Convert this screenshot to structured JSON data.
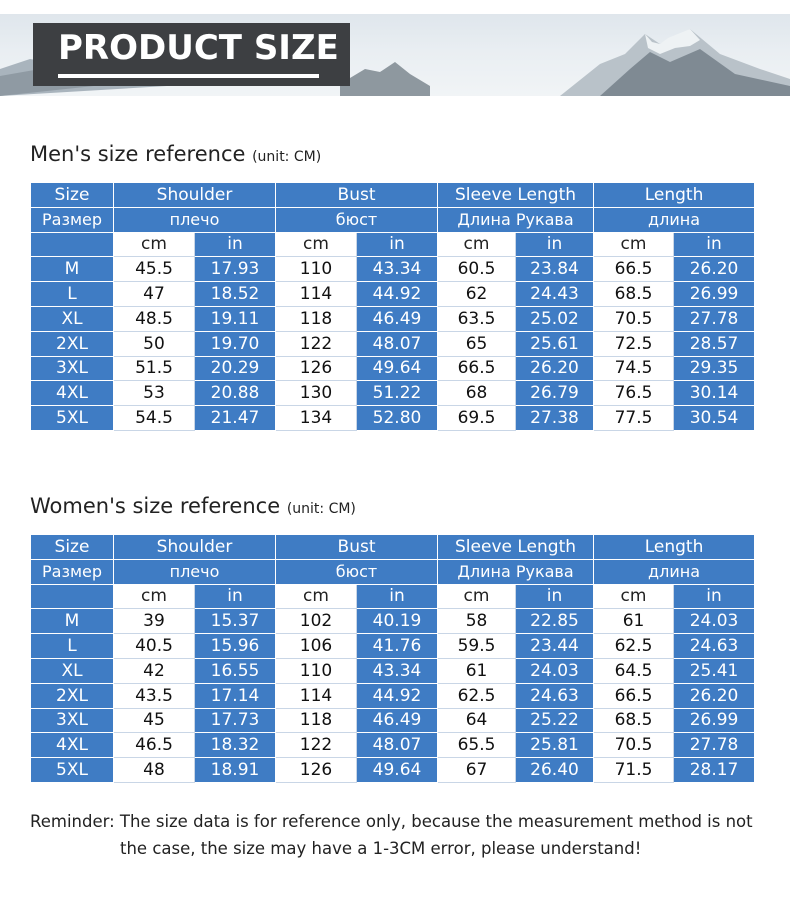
{
  "banner": {
    "title": "PRODUCT SIZE"
  },
  "columns": {
    "size": {
      "en": "Size",
      "ru": "Размер"
    },
    "groups": [
      {
        "en": "Shoulder",
        "ru": "плечо"
      },
      {
        "en": "Bust",
        "ru": "бюст"
      },
      {
        "en": "Sleeve Length",
        "ru": "Длина Рукава"
      },
      {
        "en": "Length",
        "ru": "длина"
      }
    ],
    "unit_cm": "cm",
    "unit_in": "in"
  },
  "men": {
    "heading": "Men's size reference",
    "unit": "(unit: CM)",
    "rows": [
      [
        "M",
        "45.5",
        "17.93",
        "110",
        "43.34",
        "60.5",
        "23.84",
        "66.5",
        "26.20"
      ],
      [
        "L",
        "47",
        "18.52",
        "114",
        "44.92",
        "62",
        "24.43",
        "68.5",
        "26.99"
      ],
      [
        "XL",
        "48.5",
        "19.11",
        "118",
        "46.49",
        "63.5",
        "25.02",
        "70.5",
        "27.78"
      ],
      [
        "2XL",
        "50",
        "19.70",
        "122",
        "48.07",
        "65",
        "25.61",
        "72.5",
        "28.57"
      ],
      [
        "3XL",
        "51.5",
        "20.29",
        "126",
        "49.64",
        "66.5",
        "26.20",
        "74.5",
        "29.35"
      ],
      [
        "4XL",
        "53",
        "20.88",
        "130",
        "51.22",
        "68",
        "26.79",
        "76.5",
        "30.14"
      ],
      [
        "5XL",
        "54.5",
        "21.47",
        "134",
        "52.80",
        "69.5",
        "27.38",
        "77.5",
        "30.54"
      ]
    ]
  },
  "women": {
    "heading": "Women's size reference",
    "unit": "(unit: CM)",
    "rows": [
      [
        "M",
        "39",
        "15.37",
        "102",
        "40.19",
        "58",
        "22.85",
        "61",
        "24.03"
      ],
      [
        "L",
        "40.5",
        "15.96",
        "106",
        "41.76",
        "59.5",
        "23.44",
        "62.5",
        "24.63"
      ],
      [
        "XL",
        "42",
        "16.55",
        "110",
        "43.34",
        "61",
        "24.03",
        "64.5",
        "25.41"
      ],
      [
        "2XL",
        "43.5",
        "17.14",
        "114",
        "44.92",
        "62.5",
        "24.63",
        "66.5",
        "26.20"
      ],
      [
        "3XL",
        "45",
        "17.73",
        "118",
        "46.49",
        "64",
        "25.22",
        "68.5",
        "26.99"
      ],
      [
        "4XL",
        "46.5",
        "18.32",
        "122",
        "48.07",
        "65.5",
        "25.81",
        "70.5",
        "27.78"
      ],
      [
        "5XL",
        "48",
        "18.91",
        "126",
        "49.64",
        "67",
        "26.40",
        "71.5",
        "28.17"
      ]
    ]
  },
  "reminder": {
    "line1": "Reminder: The size data is for reference only, because the measurement method is not",
    "line2": "the case, the size may have a 1-3CM error, please understand!"
  },
  "colors": {
    "header_blue": "#3f7cc4",
    "title_box": "#3d3f42"
  }
}
